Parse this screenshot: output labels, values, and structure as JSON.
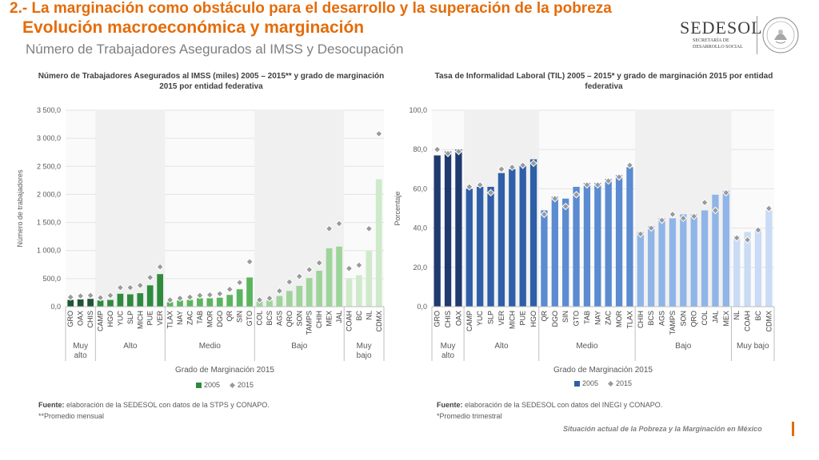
{
  "header": {
    "title_line1": "2.- La marginación como obstáculo para el desarrollo y la superación de la pobreza",
    "title_line2": "Evolución macroeconómica y marginación",
    "subtitle": "Número de Trabajadores Asegurados al IMSS y Desocupación"
  },
  "logo": {
    "brand": "SEDESOL",
    "brand_sub_line1": "SECRETARÍA DE",
    "brand_sub_line2": "DESARROLLO SOCIAL"
  },
  "colors": {
    "accent": "#E46C0A",
    "chart1_groups": [
      "#1E5631",
      "#2E8B3E",
      "#5BB55E",
      "#9ED49A",
      "#CFEACB"
    ],
    "chart2_groups": [
      "#1F3A6E",
      "#2E5FA8",
      "#5B8BD0",
      "#8FB4E8",
      "#C9DBF5"
    ]
  },
  "chart_data": [
    {
      "type": "bar",
      "title": "Número de Trabajadores Asegurados al IMSS (miles) 2005 – 2015** y grado de marginación 2015 por entidad federativa",
      "xlabel": "Grado de Marginación 2015",
      "ylabel": "Número de trabajadores",
      "ylim": [
        0,
        3500
      ],
      "yticks": [
        0,
        500,
        1000,
        1500,
        2000,
        2500,
        3000,
        3500
      ],
      "ytick_labels": [
        "0,0",
        "500,0",
        "1 000,0",
        "1 500,0",
        "2 000,0",
        "2 500,0",
        "3 000,0",
        "3 500,0"
      ],
      "categories": [
        "GRO",
        "OAX",
        "CHIS",
        "CAMP",
        "HGO",
        "YUC",
        "SLP",
        "MICH",
        "PUE",
        "VER",
        "TLAX",
        "NAY",
        "ZAC",
        "TAB",
        "MOR",
        "DGO",
        "QR",
        "SIN",
        "GTO",
        "COL",
        "BCS",
        "AGS",
        "QRO",
        "SON",
        "TAMPS",
        "CHIH",
        "MEX",
        "JAL",
        "COAH",
        "BC",
        "NL",
        "CDMX"
      ],
      "groups": [
        {
          "label": "Muy alto",
          "start": 0,
          "end": 2
        },
        {
          "label": "Alto",
          "start": 3,
          "end": 9
        },
        {
          "label": "Medio",
          "start": 10,
          "end": 18
        },
        {
          "label": "Bajo",
          "start": 19,
          "end": 27
        },
        {
          "label": "Muy bajo",
          "start": 28,
          "end": 31
        }
      ],
      "series": [
        {
          "name": "2005",
          "values": [
            120,
            130,
            140,
            110,
            120,
            230,
            220,
            240,
            380,
            580,
            80,
            110,
            120,
            150,
            150,
            160,
            210,
            310,
            520,
            90,
            110,
            190,
            280,
            370,
            510,
            640,
            1040,
            1070,
            500,
            560,
            990,
            2270
          ]
        },
        {
          "name": "2015",
          "values": [
            170,
            190,
            200,
            160,
            200,
            340,
            340,
            380,
            520,
            710,
            120,
            150,
            170,
            200,
            210,
            230,
            310,
            430,
            800,
            120,
            150,
            280,
            440,
            540,
            660,
            780,
            1390,
            1480,
            680,
            740,
            1390,
            3080
          ]
        }
      ],
      "legend": [
        "2005",
        "2015"
      ],
      "legend_position": "bottom"
    },
    {
      "type": "bar",
      "title": "Tasa de Informalidad Laboral (TIL) 2005 – 2015* y grado de marginación 2015 por entidad federativa",
      "xlabel": "Grado de Marginación 2015",
      "ylabel": "Porcentaje",
      "ylim": [
        0,
        100
      ],
      "yticks": [
        0,
        20,
        40,
        60,
        80,
        100
      ],
      "ytick_labels": [
        "0,0",
        "20,0",
        "40,0",
        "60,0",
        "80,0",
        "100,0"
      ],
      "categories": [
        "GRO",
        "CHIS",
        "OAX",
        "CAMP",
        "YUC",
        "SLP",
        "VER",
        "MICH",
        "PUE",
        "HGO",
        "QR",
        "DGO",
        "SIN",
        "GTO",
        "TAB",
        "NAY",
        "ZAC",
        "MOR",
        "TLAX",
        "CHIH",
        "BCS",
        "AGS",
        "TAMPS",
        "SON",
        "QRO",
        "COL",
        "JAL",
        "MEX",
        "NL",
        "COAH",
        "BC",
        "CDMX"
      ],
      "groups": [
        {
          "label": "Muy alto",
          "start": 0,
          "end": 2
        },
        {
          "label": "Alto",
          "start": 3,
          "end": 9
        },
        {
          "label": "Medio",
          "start": 10,
          "end": 18
        },
        {
          "label": "Bajo",
          "start": 19,
          "end": 27
        },
        {
          "label": "Muy bajo",
          "start": 28,
          "end": 31
        }
      ],
      "series": [
        {
          "name": "2005",
          "values": [
            77,
            79,
            80,
            60,
            61,
            61,
            68,
            70,
            72,
            75,
            49,
            56,
            55,
            61,
            63,
            63,
            65,
            67,
            71,
            38,
            41,
            45,
            45,
            47,
            47,
            49,
            57,
            59,
            36,
            38,
            39,
            49
          ]
        },
        {
          "name": "2015",
          "values": [
            80,
            78,
            79,
            61,
            62,
            58,
            70,
            71,
            72,
            73,
            47,
            55,
            51,
            57,
            62,
            62,
            64,
            66,
            72,
            37,
            40,
            44,
            47,
            45,
            46,
            53,
            49,
            58,
            35,
            34,
            39,
            50
          ]
        }
      ],
      "legend": [
        "2005",
        "2015"
      ],
      "legend_position": "bottom"
    }
  ],
  "footnotes": {
    "chart1_source_label": "Fuente:",
    "chart1_source_text": " elaboración de la SEDESOL con datos de la STPS y CONAPO.",
    "chart1_note": "**Promedio mensual",
    "chart2_source_label": "Fuente:",
    "chart2_source_text": " elaboración de la SEDESOL con datos del INEGI y CONAPO.",
    "chart2_note": "*Promedio trimestral"
  },
  "footer": {
    "text": "Situación actual de la Pobreza y la Marginación en México"
  }
}
